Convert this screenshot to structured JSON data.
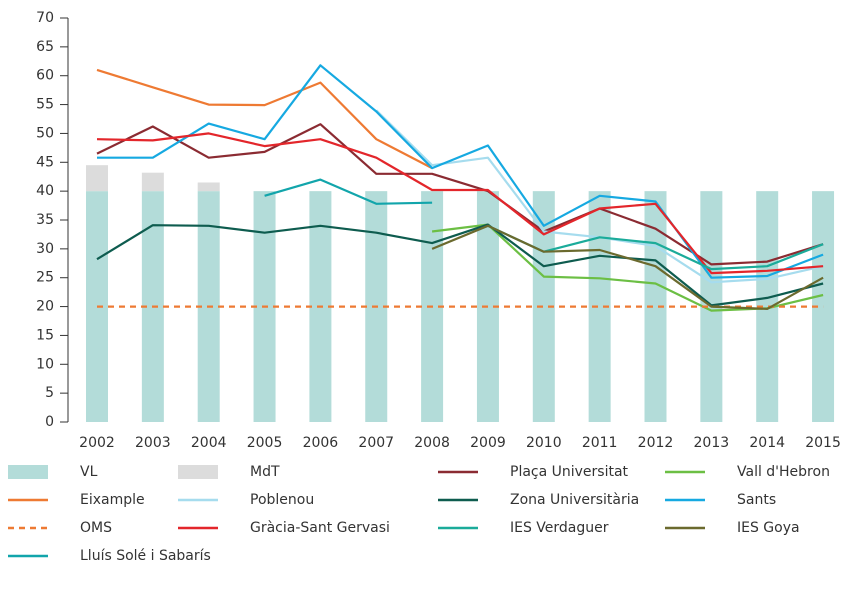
{
  "chart_data": {
    "type": "bar-line",
    "categories": [
      "2002",
      "2003",
      "2004",
      "2005",
      "2006",
      "2007",
      "2008",
      "2009",
      "2010",
      "2011",
      "2012",
      "2013",
      "2014",
      "2015"
    ],
    "ylim": [
      0,
      70
    ],
    "yticks": [
      0,
      5,
      10,
      15,
      20,
      25,
      30,
      35,
      40,
      45,
      50,
      55,
      60,
      65,
      70
    ],
    "legend": "bottom",
    "series": [
      {
        "name": "VL",
        "kind": "bar",
        "color": "#b3dcd9",
        "values": [
          40,
          40,
          40,
          40,
          40,
          40,
          40,
          40,
          40,
          40,
          40,
          40,
          40,
          40
        ]
      },
      {
        "name": "MdT",
        "kind": "bar",
        "color": "#dcdcdc",
        "values": [
          4.5,
          3.2,
          1.5,
          0,
          0,
          0,
          0,
          0,
          0,
          0,
          0,
          0,
          0,
          0
        ]
      },
      {
        "name": "Plaça Universitat",
        "kind": "line",
        "color": "#8b2b32",
        "values": [
          46.5,
          51.2,
          45.8,
          46.8,
          51.6,
          43,
          43,
          40,
          33,
          37,
          33.5,
          27.3,
          27.8,
          30.8
        ]
      },
      {
        "name": "Vall d'Hebron",
        "kind": "line",
        "color": "#6cbf44",
        "values": [
          null,
          null,
          null,
          null,
          null,
          null,
          33,
          34.2,
          25.2,
          24.9,
          24,
          19.3,
          19.7,
          22
        ]
      },
      {
        "name": "Eixample",
        "kind": "line",
        "color": "#ee7a33",
        "values": [
          61,
          58,
          55,
          54.9,
          58.8,
          49,
          44,
          null,
          null,
          null,
          null,
          null,
          null,
          null
        ]
      },
      {
        "name": "Poblenou",
        "kind": "line",
        "color": "#a6dcee",
        "values": [
          null,
          null,
          null,
          null,
          null,
          54,
          44.5,
          45.8,
          33,
          32,
          30.5,
          24.2,
          24.8,
          27
        ]
      },
      {
        "name": "Zona Universitària",
        "kind": "line",
        "color": "#0e5c4f",
        "values": [
          28.2,
          34.1,
          34,
          32.8,
          34,
          32.8,
          31,
          34.2,
          27,
          28.8,
          28,
          20.2,
          21.5,
          24
        ]
      },
      {
        "name": "Sants",
        "kind": "line",
        "color": "#16a9e1",
        "values": [
          45.8,
          45.8,
          51.7,
          49,
          61.8,
          53.8,
          44,
          47.9,
          34,
          39.2,
          38.2,
          25,
          25.3,
          29
        ]
      },
      {
        "name": "OMS",
        "kind": "line",
        "dashed": true,
        "color": "#ee7a33",
        "values": [
          20,
          20,
          20,
          20,
          20,
          20,
          20,
          20,
          20,
          20,
          20,
          20,
          20,
          20
        ]
      },
      {
        "name": "Gràcia-Sant Gervasi",
        "kind": "line",
        "color": "#e3262b",
        "values": [
          49,
          48.8,
          50,
          47.8,
          49,
          45.8,
          40.2,
          40.2,
          32.5,
          37,
          37.8,
          25.8,
          26.2,
          27
        ]
      },
      {
        "name": "IES Verdaguer",
        "kind": "line",
        "color": "#1bab9a",
        "values": [
          null,
          null,
          null,
          null,
          null,
          null,
          null,
          34,
          29.5,
          32,
          31,
          26.5,
          27,
          30.8
        ]
      },
      {
        "name": "IES Goya",
        "kind": "line",
        "color": "#6b6a2e",
        "values": [
          null,
          null,
          null,
          null,
          null,
          null,
          30,
          34,
          29.5,
          29.8,
          27,
          20,
          19.6,
          25
        ]
      },
      {
        "name": "Lluís Solé i Sabarís",
        "kind": "line",
        "color": "#12a5ab",
        "values": [
          null,
          null,
          null,
          39.2,
          42,
          37.8,
          38,
          null,
          null,
          null,
          null,
          null,
          null,
          null
        ]
      }
    ]
  }
}
